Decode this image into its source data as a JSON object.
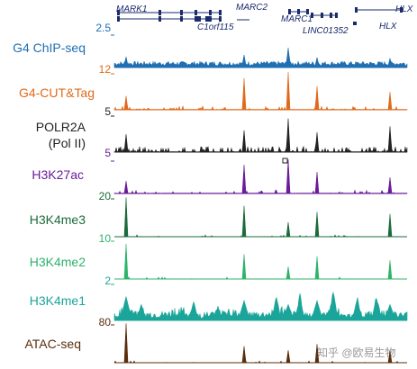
{
  "genes": {
    "mark1": "MARK1",
    "c1orf115": "C1orf115",
    "marc2": "MARC2",
    "marc1": "MARC1",
    "linc01352": "LINC01352",
    "hlx_top": "HLX",
    "hlx_bottom": "HLX"
  },
  "tracks": [
    {
      "id": "g4-chipseq",
      "label": "G4 ChIP-seq",
      "label2": "",
      "scale": "2.5",
      "color": "#1f6fb2",
      "kind": "dense"
    },
    {
      "id": "g4-cuttag",
      "label": "G4-CUT&Tag",
      "label2": "",
      "scale": "12",
      "color": "#e06a1b",
      "kind": "peaks"
    },
    {
      "id": "polr2a",
      "label": "POLR2A",
      "label2": "(Pol II)",
      "scale": "5",
      "color": "#222222",
      "kind": "noisy"
    },
    {
      "id": "h3k27ac",
      "label": "H3K27ac",
      "label2": "",
      "scale": "5",
      "color": "#6a1b9a",
      "kind": "peaks"
    },
    {
      "id": "h3k4me3",
      "label": "H3K4me3",
      "label2": "",
      "scale": "20",
      "color": "#1b6b3a",
      "kind": "sharp"
    },
    {
      "id": "h3k4me2",
      "label": "H3K4me2",
      "label2": "",
      "scale": "10",
      "color": "#2db36a",
      "kind": "sharp"
    },
    {
      "id": "h3k4me1",
      "label": "H3K4me1",
      "label2": "",
      "scale": "2",
      "color": "#1ba59a",
      "kind": "broad"
    },
    {
      "id": "atac",
      "label": "ATAC-seq",
      "label2": "",
      "scale": "80",
      "color": "#5a2d0c",
      "kind": "sharp"
    }
  ],
  "watermark": "知乎 @欧易生物"
}
